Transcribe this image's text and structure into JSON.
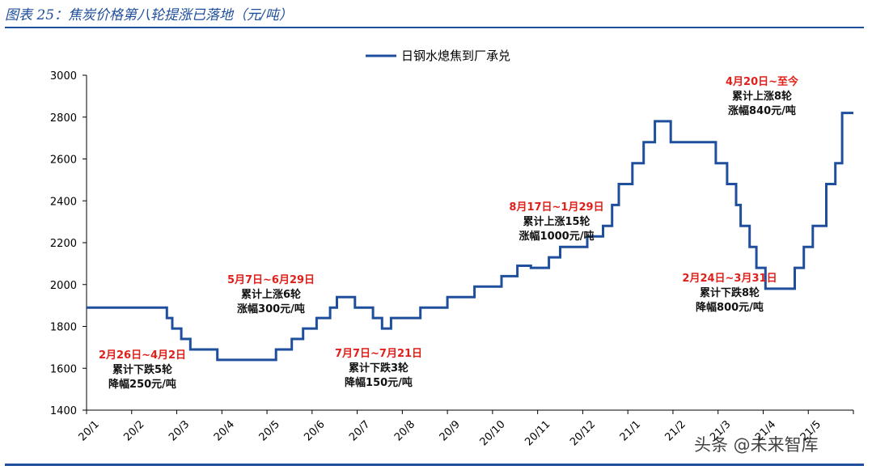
{
  "figure": {
    "title": "图表 25：焦炭价格第八轮提涨已落地（元/吨）",
    "watermark": "头条 @未来智库"
  },
  "chart_data": {
    "type": "line",
    "title": "",
    "legend": "日钢水熄焦到厂承兑",
    "legend_position": "top-center",
    "ylim": [
      1400,
      3000
    ],
    "yticks": [
      1400,
      1600,
      1800,
      2000,
      2200,
      2400,
      2600,
      2800,
      3000
    ],
    "xtick_labels": [
      "20/1",
      "20/2",
      "20/3",
      "20/4",
      "20/5",
      "20/6",
      "20/7",
      "20/8",
      "20/9",
      "20/10",
      "20/11",
      "20/12",
      "21/1",
      "21/2",
      "21/3",
      "21/4",
      "21/5"
    ],
    "x_unit": "month index (0 = 2020-01-01)",
    "line_color": "#1f4e9c",
    "series": [
      {
        "name": "日钢水熄焦到厂承兑",
        "x": [
          0.0,
          1.78,
          1.78,
          1.9,
          1.9,
          2.1,
          2.1,
          2.3,
          2.3,
          2.9,
          2.9,
          4.2,
          4.2,
          4.55,
          4.55,
          4.8,
          4.8,
          5.1,
          5.1,
          5.4,
          5.4,
          5.55,
          5.55,
          5.95,
          5.95,
          6.35,
          6.35,
          6.55,
          6.55,
          6.75,
          6.75,
          7.4,
          7.4,
          8.0,
          8.0,
          8.6,
          8.6,
          9.2,
          9.2,
          9.55,
          9.55,
          9.85,
          9.85,
          10.25,
          10.25,
          10.5,
          10.5,
          11.1,
          11.1,
          11.45,
          11.45,
          11.65,
          11.65,
          11.8,
          11.8,
          12.1,
          12.1,
          12.35,
          12.35,
          12.6,
          12.6,
          12.95,
          12.95,
          13.95,
          13.95,
          14.2,
          14.2,
          14.4,
          14.4,
          14.5,
          14.5,
          14.7,
          14.7,
          14.85,
          14.85,
          15.05,
          15.05,
          15.7,
          15.7,
          15.9,
          15.9,
          16.1,
          16.1,
          16.4,
          16.4,
          16.6,
          16.6,
          16.75,
          16.75,
          17.0
        ],
        "values": [
          1890,
          1890,
          1840,
          1840,
          1790,
          1790,
          1740,
          1740,
          1690,
          1690,
          1640,
          1640,
          1690,
          1690,
          1740,
          1740,
          1790,
          1790,
          1840,
          1840,
          1890,
          1890,
          1940,
          1940,
          1890,
          1890,
          1840,
          1840,
          1790,
          1790,
          1840,
          1840,
          1890,
          1890,
          1940,
          1940,
          1990,
          1990,
          2040,
          2040,
          2090,
          2090,
          2080,
          2080,
          2130,
          2130,
          2180,
          2180,
          2230,
          2230,
          2280,
          2280,
          2380,
          2380,
          2480,
          2480,
          2580,
          2580,
          2680,
          2680,
          2780,
          2780,
          2680,
          2680,
          2580,
          2580,
          2480,
          2480,
          2380,
          2380,
          2280,
          2280,
          2180,
          2180,
          2080,
          2080,
          1980,
          1980,
          2080,
          2080,
          2180,
          2180,
          2280,
          2280,
          2480,
          2480,
          2580,
          2580,
          2820,
          2820
        ]
      }
    ],
    "annotations": [
      {
        "lines": [
          "2月26日~4月2日",
          "累计下跌5轮",
          "降幅250元/吨"
        ]
      },
      {
        "lines": [
          "5月7日~6月29日",
          "累计上涨6轮",
          "涨幅300元/吨"
        ]
      },
      {
        "lines": [
          "7月7日~7月21日",
          "累计下跌3轮",
          "降幅150元/吨"
        ]
      },
      {
        "lines": [
          "8月17日~1月29日",
          "累计上涨15轮",
          "涨幅1000元/吨"
        ]
      },
      {
        "lines": [
          "2月24日~3月31日",
          "累计下跌8轮",
          "降幅800元/吨"
        ]
      },
      {
        "lines": [
          "4月20日~至今",
          "累计上涨8轮",
          "涨幅840元/吨"
        ]
      }
    ]
  }
}
